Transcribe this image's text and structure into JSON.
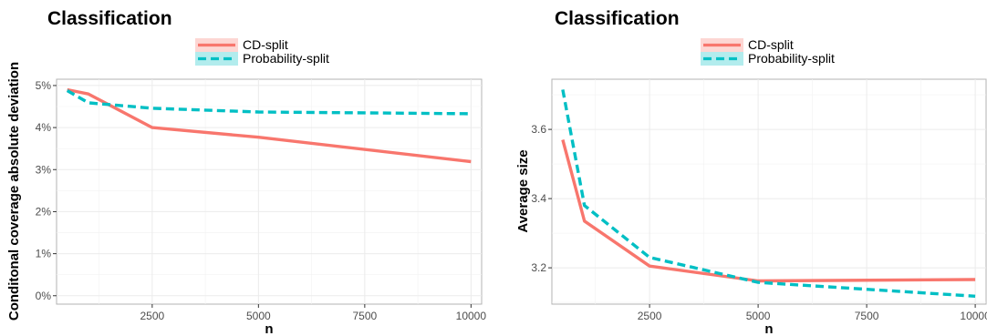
{
  "chart_data": [
    {
      "type": "line",
      "title": "Classification",
      "xlabel": "n",
      "ylabel": "Conditonal coverage absolute deviation",
      "xlim": [
        250,
        10250
      ],
      "ylim": [
        -0.002,
        0.0515
      ],
      "x_ticks": [
        2500,
        5000,
        7500,
        10000
      ],
      "x_tick_labels": [
        "2500",
        "5000",
        "7500",
        "10000"
      ],
      "y_ticks": [
        0,
        0.01,
        0.02,
        0.03,
        0.04,
        0.05
      ],
      "y_tick_labels": [
        "0%",
        "1%",
        "2%",
        "3%",
        "4%",
        "5%"
      ],
      "grid": true,
      "legend_position": "top-center",
      "x": [
        500,
        1000,
        2500,
        5000,
        10000
      ],
      "series": [
        {
          "name": "CD-split",
          "values": [
            0.049,
            0.048,
            0.04,
            0.0377,
            0.0319
          ],
          "color": "#F8766D",
          "dash": "solid"
        },
        {
          "name": "Probability-split",
          "values": [
            0.0488,
            0.0459,
            0.0446,
            0.0437,
            0.0433
          ],
          "color": "#00BFC4",
          "dash": "dashed"
        }
      ]
    },
    {
      "type": "line",
      "title": "Classification",
      "xlabel": "n",
      "ylabel": "Average size",
      "xlim": [
        250,
        10250
      ],
      "ylim": [
        3.095,
        3.745
      ],
      "x_ticks": [
        2500,
        5000,
        7500,
        10000
      ],
      "x_tick_labels": [
        "2500",
        "5000",
        "7500",
        "10000"
      ],
      "y_ticks": [
        3.2,
        3.4,
        3.6
      ],
      "y_tick_labels": [
        "3.2",
        "3.4",
        "3.6"
      ],
      "grid": true,
      "legend_position": "top-center",
      "x": [
        500,
        1000,
        2500,
        5000,
        10000
      ],
      "series": [
        {
          "name": "CD-split",
          "values": [
            3.57,
            3.335,
            3.205,
            3.162,
            3.166
          ],
          "color": "#F8766D",
          "dash": "solid"
        },
        {
          "name": "Probability-split",
          "values": [
            3.715,
            3.38,
            3.23,
            3.158,
            3.118
          ],
          "color": "#00BFC4",
          "dash": "dashed"
        }
      ]
    }
  ]
}
